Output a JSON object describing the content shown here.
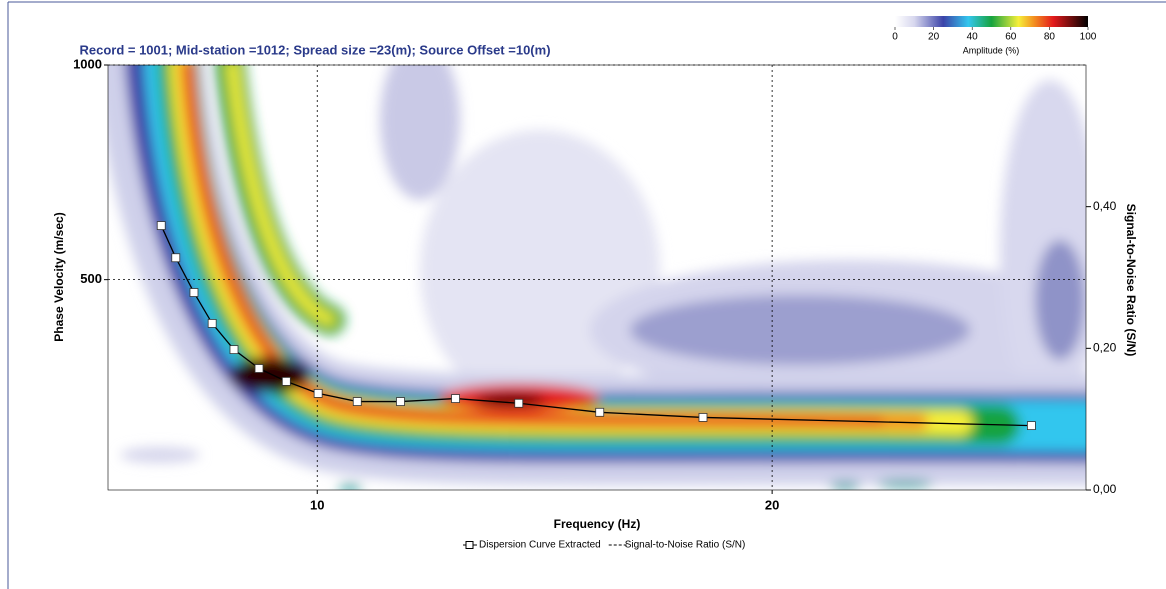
{
  "chart_data": {
    "type": "line",
    "title": "Record = 1001; Mid-station =1012; Spread size =23(m); Source Offset =10(m)",
    "x_label": "Frequency (Hz)",
    "y_label": "Phase Velocity (m/sec)",
    "y2_label": "Signal-to-Noise Ratio (S/N)",
    "xlim": [
      5.4,
      26.9
    ],
    "xticks": [
      10,
      20
    ],
    "ylim": [
      10,
      1000
    ],
    "yticks": [
      500,
      1000
    ],
    "y2lim": [
      0,
      0.6
    ],
    "y2ticks": [
      {
        "value": 0,
        "label": "0,00"
      },
      {
        "value": 0.2,
        "label": "0,20"
      },
      {
        "value": 0.4,
        "label": "0,40"
      }
    ],
    "grid": true,
    "colorbar": {
      "label": "Amplitude (%)",
      "lim": [
        0,
        100
      ],
      "ticks": [
        0,
        20,
        40,
        60,
        80,
        100
      ]
    },
    "series": [
      {
        "name": "Dispersion Curve Extracted",
        "color": "#000000",
        "marker": "square",
        "x": [
          6.57,
          6.89,
          7.29,
          7.69,
          8.17,
          8.72,
          9.32,
          10.02,
          10.88,
          11.83,
          13.04,
          14.43,
          16.21,
          18.48,
          25.7
        ],
        "values": [
          626,
          551,
          470,
          398,
          337,
          293,
          263,
          235,
          216,
          216,
          223,
          212,
          191,
          179,
          160
        ]
      },
      {
        "name": "Signal-to-Noise Ratio (S/N)",
        "color": "#000000",
        "line_style": "dashed",
        "axis": "y2"
      }
    ]
  }
}
